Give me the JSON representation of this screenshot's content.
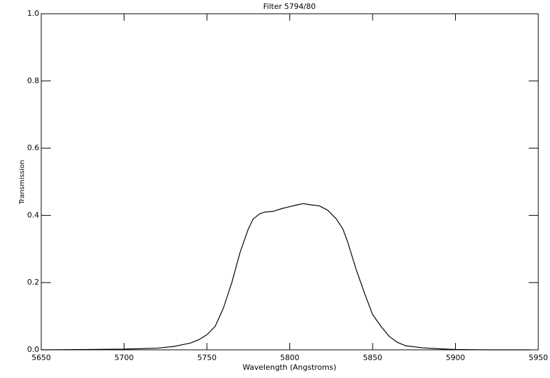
{
  "chart_data": {
    "type": "line",
    "title": "Filter 5794/80",
    "x_label": "Wavelength (Angstroms)",
    "y_label": "Transmission",
    "x": [
      5650,
      5700,
      5720,
      5730,
      5740,
      5745,
      5750,
      5755,
      5760,
      5765,
      5770,
      5775,
      5778,
      5782,
      5785,
      5790,
      5795,
      5800,
      5805,
      5808,
      5812,
      5818,
      5823,
      5828,
      5832,
      5835,
      5840,
      5845,
      5850,
      5855,
      5860,
      5865,
      5870,
      5880,
      5890,
      5900,
      5920,
      5945
    ],
    "series": [
      {
        "color": "#000000",
        "values": [
          0,
          0.002,
          0.005,
          0.01,
          0.02,
          0.03,
          0.045,
          0.07,
          0.125,
          0.2,
          0.29,
          0.36,
          0.39,
          0.405,
          0.41,
          0.412,
          0.42,
          0.426,
          0.432,
          0.435,
          0.432,
          0.428,
          0.415,
          0.39,
          0.36,
          0.32,
          0.24,
          0.17,
          0.105,
          0.07,
          0.04,
          0.022,
          0.012,
          0.006,
          0.003,
          0.001,
          0,
          0
        ]
      }
    ],
    "xlim": [
      5650,
      5950
    ],
    "xticks": [
      5650,
      5700,
      5750,
      5800,
      5850,
      5900,
      5950
    ],
    "ylim": [
      0,
      1
    ],
    "yticks": [
      {
        "value": 0,
        "label": "0.0"
      },
      0.2,
      0.4,
      0.6,
      0.8,
      {
        "value": 1,
        "label": "1.0"
      }
    ]
  }
}
